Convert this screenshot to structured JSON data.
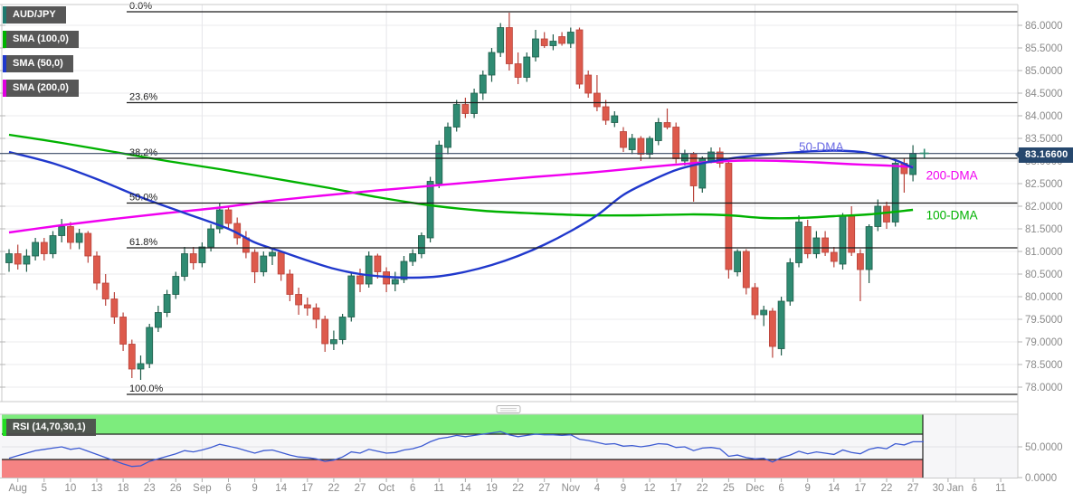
{
  "legend": {
    "items": [
      {
        "label": "AUD/JPY",
        "color": "#1d7a6f"
      },
      {
        "label": "SMA (100,0)",
        "color": "#00b200"
      },
      {
        "label": "SMA (50,0)",
        "color": "#2038cc"
      },
      {
        "label": "SMA (200,0)",
        "color": "#e000e0"
      }
    ]
  },
  "rsi_legend": {
    "label": "RSI (14,70,30,1)",
    "color": "#22dd22"
  },
  "current_price": {
    "label": "83.16600",
    "value": 83.166,
    "box_color": "#26476d"
  },
  "price_axis": {
    "labels": [
      "86.0000",
      "85.5000",
      "85.0000",
      "84.5000",
      "84.0000",
      "83.5000",
      "83.0000",
      "82.5000",
      "82.0000",
      "81.5000",
      "81.0000",
      "80.5000",
      "80.0000",
      "79.5000",
      "79.0000",
      "78.5000",
      "78.0000"
    ],
    "max": 86.0,
    "min": 78.0,
    "step": 0.5
  },
  "rsi_axis": {
    "labels": [
      "50.0000",
      "0.0000"
    ]
  },
  "x_axis": {
    "labels": [
      {
        "text": "Aug",
        "slot": 1
      },
      {
        "text": "5",
        "slot": 4
      },
      {
        "text": "10",
        "slot": 7
      },
      {
        "text": "13",
        "slot": 10
      },
      {
        "text": "18",
        "slot": 13
      },
      {
        "text": "23",
        "slot": 16
      },
      {
        "text": "26",
        "slot": 19
      },
      {
        "text": "Sep",
        "slot": 22
      },
      {
        "text": "6",
        "slot": 25
      },
      {
        "text": "9",
        "slot": 28
      },
      {
        "text": "14",
        "slot": 31
      },
      {
        "text": "17",
        "slot": 34
      },
      {
        "text": "22",
        "slot": 37
      },
      {
        "text": "27",
        "slot": 40
      },
      {
        "text": "Oct",
        "slot": 43
      },
      {
        "text": "6",
        "slot": 46
      },
      {
        "text": "11",
        "slot": 49
      },
      {
        "text": "14",
        "slot": 52
      },
      {
        "text": "19",
        "slot": 55
      },
      {
        "text": "22",
        "slot": 58
      },
      {
        "text": "27",
        "slot": 61
      },
      {
        "text": "Nov",
        "slot": 64
      },
      {
        "text": "4",
        "slot": 67
      },
      {
        "text": "9",
        "slot": 70
      },
      {
        "text": "12",
        "slot": 73
      },
      {
        "text": "17",
        "slot": 76
      },
      {
        "text": "22",
        "slot": 79
      },
      {
        "text": "25",
        "slot": 82
      },
      {
        "text": "Dec",
        "slot": 85
      },
      {
        "text": "6",
        "slot": 88
      },
      {
        "text": "9",
        "slot": 91
      },
      {
        "text": "14",
        "slot": 94
      },
      {
        "text": "17",
        "slot": 97
      },
      {
        "text": "22",
        "slot": 100
      },
      {
        "text": "27",
        "slot": 103
      },
      {
        "text": "30 Jan",
        "slot": 107
      },
      {
        "text": "6",
        "slot": 110
      },
      {
        "text": "11",
        "slot": 113
      }
    ]
  },
  "fib_levels": [
    {
      "label": "0.0%",
      "price": 86.3
    },
    {
      "label": "23.6%",
      "price": 84.29
    },
    {
      "label": "38.2%",
      "price": 83.06
    },
    {
      "label": "50.0%",
      "price": 82.07
    },
    {
      "label": "61.8%",
      "price": 81.08
    },
    {
      "label": "100.0%",
      "price": 77.84
    }
  ],
  "overlay_labels": [
    {
      "text": "50-DMA",
      "color": "#6b6be4",
      "slot": 90.0,
      "price": 83.3
    },
    {
      "text": "200-DMA",
      "color": "#f000f0",
      "slot": 104.5,
      "price": 82.67
    },
    {
      "text": "100-DMA",
      "color": "#00b200",
      "slot": 104.5,
      "price": 81.79
    }
  ],
  "chart_data": {
    "type": "candlestick",
    "instrument": "AUD/JPY",
    "timeframe": "daily",
    "price_range": [
      78.0,
      86.0
    ],
    "current_price": 83.166,
    "up_color": "#2f8b72",
    "down_color": "#dd5a4c",
    "month_gridline_slots": [
      22,
      43,
      64,
      85,
      107.9
    ],
    "candles": [
      [
        80.75,
        81.05,
        80.55,
        80.95
      ],
      [
        80.95,
        81.15,
        80.6,
        80.72
      ],
      [
        80.72,
        81.05,
        80.55,
        80.9
      ],
      [
        80.9,
        81.3,
        80.8,
        81.2
      ],
      [
        81.2,
        81.3,
        80.8,
        80.95
      ],
      [
        80.95,
        81.45,
        80.85,
        81.35
      ],
      [
        81.35,
        81.72,
        81.2,
        81.55
      ],
      [
        81.55,
        81.65,
        81.05,
        81.2
      ],
      [
        81.2,
        81.5,
        81.05,
        81.4
      ],
      [
        81.4,
        81.45,
        80.75,
        80.9
      ],
      [
        80.9,
        81.0,
        80.15,
        80.3
      ],
      [
        80.3,
        80.5,
        79.8,
        79.95
      ],
      [
        79.95,
        80.1,
        79.4,
        79.55
      ],
      [
        79.55,
        79.65,
        78.8,
        78.95
      ],
      [
        78.95,
        79.05,
        78.2,
        78.4
      ],
      [
        78.4,
        78.7,
        78.16,
        78.52
      ],
      [
        78.52,
        79.4,
        78.42,
        79.32
      ],
      [
        79.32,
        79.8,
        79.22,
        79.65
      ],
      [
        79.65,
        80.15,
        79.55,
        80.05
      ],
      [
        80.05,
        80.55,
        79.95,
        80.45
      ],
      [
        80.45,
        81.1,
        80.35,
        80.95
      ],
      [
        80.95,
        81.1,
        80.6,
        80.75
      ],
      [
        80.75,
        81.2,
        80.65,
        81.1
      ],
      [
        81.1,
        81.6,
        81.0,
        81.5
      ],
      [
        81.5,
        82.06,
        81.4,
        81.92
      ],
      [
        81.92,
        82.0,
        81.5,
        81.62
      ],
      [
        81.62,
        81.75,
        81.15,
        81.3
      ],
      [
        81.3,
        81.45,
        80.85,
        80.98
      ],
      [
        80.98,
        81.05,
        80.3,
        80.55
      ],
      [
        80.55,
        81.0,
        80.45,
        80.9
      ],
      [
        80.9,
        81.08,
        80.7,
        80.98
      ],
      [
        80.98,
        81.02,
        80.35,
        80.5
      ],
      [
        80.5,
        80.6,
        79.9,
        80.05
      ],
      [
        80.05,
        80.2,
        79.6,
        79.82
      ],
      [
        79.82,
        79.98,
        79.58,
        79.75
      ],
      [
        79.75,
        79.85,
        79.3,
        79.5
      ],
      [
        79.5,
        79.58,
        78.78,
        78.96
      ],
      [
        78.96,
        79.25,
        78.82,
        79.05
      ],
      [
        79.05,
        79.62,
        78.95,
        79.55
      ],
      [
        79.55,
        80.55,
        79.45,
        80.46
      ],
      [
        80.46,
        80.62,
        80.1,
        80.28
      ],
      [
        80.28,
        81.0,
        80.2,
        80.9
      ],
      [
        80.9,
        80.95,
        80.4,
        80.55
      ],
      [
        80.55,
        80.65,
        80.1,
        80.28
      ],
      [
        80.28,
        80.55,
        80.12,
        80.38
      ],
      [
        80.38,
        80.9,
        80.3,
        80.78
      ],
      [
        80.78,
        81.05,
        80.68,
        80.95
      ],
      [
        80.95,
        81.42,
        80.85,
        81.35
      ],
      [
        81.3,
        82.65,
        81.2,
        82.55
      ],
      [
        82.5,
        83.45,
        82.4,
        83.35
      ],
      [
        83.3,
        83.85,
        83.15,
        83.75
      ],
      [
        83.75,
        84.35,
        83.65,
        84.25
      ],
      [
        84.25,
        84.4,
        83.95,
        84.05
      ],
      [
        84.05,
        84.6,
        83.95,
        84.5
      ],
      [
        84.5,
        85.0,
        84.35,
        84.9
      ],
      [
        84.9,
        85.5,
        84.75,
        85.4
      ],
      [
        85.4,
        86.05,
        85.3,
        85.95
      ],
      [
        85.95,
        86.28,
        85.0,
        85.15
      ],
      [
        85.15,
        85.4,
        84.7,
        84.85
      ],
      [
        84.85,
        85.4,
        84.75,
        85.3
      ],
      [
        85.3,
        85.9,
        85.2,
        85.7
      ],
      [
        85.7,
        85.85,
        85.5,
        85.55
      ],
      [
        85.55,
        85.8,
        85.45,
        85.65
      ],
      [
        85.75,
        85.85,
        85.55,
        85.6
      ],
      [
        85.6,
        85.95,
        85.5,
        85.85
      ],
      [
        85.9,
        85.95,
        84.6,
        84.7
      ],
      [
        84.9,
        85.0,
        84.4,
        84.5
      ],
      [
        84.5,
        84.9,
        84.1,
        84.2
      ],
      [
        84.2,
        84.35,
        83.8,
        83.9
      ],
      [
        83.85,
        84.1,
        83.75,
        84.0
      ],
      [
        83.65,
        83.75,
        83.2,
        83.3
      ],
      [
        83.25,
        83.6,
        83.15,
        83.5
      ],
      [
        83.5,
        83.55,
        83.0,
        83.15
      ],
      [
        83.15,
        83.55,
        83.05,
        83.5
      ],
      [
        83.45,
        83.95,
        83.35,
        83.85
      ],
      [
        83.85,
        84.16,
        83.7,
        83.75
      ],
      [
        83.75,
        83.85,
        82.95,
        83.05
      ],
      [
        83.0,
        83.25,
        82.9,
        83.15
      ],
      [
        83.15,
        83.2,
        82.1,
        82.45
      ],
      [
        82.4,
        83.1,
        82.3,
        83.05
      ],
      [
        83.0,
        83.3,
        82.95,
        83.2
      ],
      [
        83.2,
        83.3,
        82.85,
        82.95
      ],
      [
        82.95,
        83.0,
        80.4,
        80.6
      ],
      [
        80.55,
        81.05,
        80.45,
        81.0
      ],
      [
        81.0,
        81.05,
        80.05,
        80.2
      ],
      [
        80.2,
        80.3,
        79.5,
        79.6
      ],
      [
        79.6,
        79.8,
        79.35,
        79.7
      ],
      [
        79.68,
        79.75,
        78.65,
        78.9
      ],
      [
        78.85,
        80.0,
        78.7,
        79.9
      ],
      [
        79.9,
        80.85,
        79.8,
        80.75
      ],
      [
        80.75,
        81.8,
        80.65,
        81.65
      ],
      [
        81.55,
        81.7,
        80.85,
        80.95
      ],
      [
        80.95,
        81.45,
        80.85,
        81.3
      ],
      [
        81.3,
        81.45,
        80.9,
        80.98
      ],
      [
        80.98,
        81.1,
        80.65,
        80.78
      ],
      [
        80.72,
        81.85,
        80.6,
        81.78
      ],
      [
        81.78,
        82.0,
        80.9,
        80.98
      ],
      [
        80.95,
        81.05,
        79.9,
        80.6
      ],
      [
        80.6,
        81.6,
        80.3,
        81.55
      ],
      [
        81.55,
        82.15,
        81.45,
        82.0
      ],
      [
        82.0,
        82.1,
        81.5,
        81.65
      ],
      [
        81.65,
        83.0,
        81.55,
        82.95
      ],
      [
        82.95,
        83.05,
        82.3,
        82.72
      ],
      [
        82.7,
        83.35,
        82.55,
        83.17
      ]
    ],
    "sma100": [
      [
        0,
        83.58
      ],
      [
        6,
        83.4
      ],
      [
        12,
        83.2
      ],
      [
        18,
        83.0
      ],
      [
        24,
        82.82
      ],
      [
        30,
        82.62
      ],
      [
        36,
        82.42
      ],
      [
        42,
        82.2
      ],
      [
        48,
        82.02
      ],
      [
        54,
        81.9
      ],
      [
        60,
        81.84
      ],
      [
        66,
        81.8
      ],
      [
        72,
        81.8
      ],
      [
        78,
        81.82
      ],
      [
        82,
        81.8
      ],
      [
        86,
        81.74
      ],
      [
        90,
        81.74
      ],
      [
        94,
        81.78
      ],
      [
        98,
        81.82
      ],
      [
        103,
        81.92
      ]
    ],
    "sma50": [
      [
        0,
        83.2
      ],
      [
        5,
        82.95
      ],
      [
        10,
        82.6
      ],
      [
        15,
        82.2
      ],
      [
        20,
        81.85
      ],
      [
        25,
        81.5
      ],
      [
        28,
        81.2
      ],
      [
        31,
        81.0
      ],
      [
        34,
        80.8
      ],
      [
        37,
        80.62
      ],
      [
        40,
        80.5
      ],
      [
        43,
        80.44
      ],
      [
        46,
        80.42
      ],
      [
        49,
        80.45
      ],
      [
        52,
        80.55
      ],
      [
        55,
        80.7
      ],
      [
        58,
        80.9
      ],
      [
        61,
        81.15
      ],
      [
        64,
        81.45
      ],
      [
        67,
        81.8
      ],
      [
        70,
        82.25
      ],
      [
        73,
        82.55
      ],
      [
        76,
        82.8
      ],
      [
        79,
        82.95
      ],
      [
        82,
        83.05
      ],
      [
        85,
        83.12
      ],
      [
        88,
        83.17
      ],
      [
        91,
        83.21
      ],
      [
        94,
        83.23
      ],
      [
        97,
        83.2
      ],
      [
        99,
        83.13
      ],
      [
        101,
        83.02
      ],
      [
        103,
        82.85
      ]
    ],
    "sma200": [
      [
        0,
        81.42
      ],
      [
        6,
        81.58
      ],
      [
        12,
        81.72
      ],
      [
        18,
        81.85
      ],
      [
        24,
        81.97
      ],
      [
        30,
        82.12
      ],
      [
        36,
        82.24
      ],
      [
        42,
        82.35
      ],
      [
        48,
        82.45
      ],
      [
        54,
        82.55
      ],
      [
        60,
        82.65
      ],
      [
        66,
        82.74
      ],
      [
        72,
        82.85
      ],
      [
        76,
        82.92
      ],
      [
        80,
        82.98
      ],
      [
        84,
        83.01
      ],
      [
        88,
        83.0
      ],
      [
        92,
        82.97
      ],
      [
        96,
        82.93
      ],
      [
        100,
        82.9
      ],
      [
        103,
        82.87
      ]
    ],
    "rsi": {
      "type": "line",
      "range": [
        0,
        100
      ],
      "upper_band": 70,
      "lower_band": 30,
      "values": [
        32,
        36,
        40,
        44,
        46,
        48,
        50,
        46,
        48,
        43,
        38,
        33,
        28,
        23,
        19,
        20,
        27,
        31,
        35,
        39,
        44,
        42,
        45,
        49,
        54,
        51,
        48,
        44,
        40,
        44,
        45,
        41,
        37,
        34,
        33,
        31,
        27,
        29,
        34,
        42,
        40,
        46,
        43,
        40,
        41,
        45,
        47,
        51,
        58,
        63,
        65,
        68,
        66,
        68,
        70,
        72,
        74,
        69,
        66,
        68,
        70,
        69,
        69,
        68,
        69,
        62,
        60,
        57,
        54,
        55,
        51,
        52,
        50,
        52,
        55,
        54,
        49,
        50,
        44,
        48,
        49,
        47,
        35,
        37,
        33,
        31,
        32,
        26,
        33,
        37,
        43,
        39,
        42,
        40,
        38,
        45,
        41,
        39,
        46,
        49,
        47,
        55,
        53,
        58
      ]
    }
  }
}
